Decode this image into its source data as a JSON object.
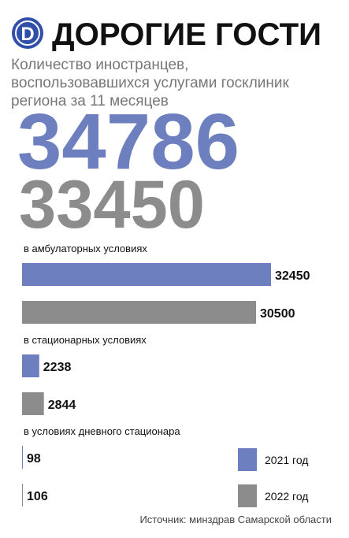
{
  "chart_data": {
    "type": "bar",
    "orientation": "horizontal",
    "logo": "D",
    "title": "ДОРОГИЕ ГОСТИ",
    "subtitle": [
      "Количество иностранцев,",
      "воспользовавшихся услугами госклиник",
      "региона за 11 месяцев"
    ],
    "categories": [
      "в амбулаторных условиях",
      "в стационарных условиях",
      "в условиях дневного стационара"
    ],
    "series": [
      {
        "name": "2021 год",
        "color": "#6d7fbe",
        "total": 34786,
        "values": [
          32450,
          2238,
          98
        ]
      },
      {
        "name": "2022 год",
        "color": "#8c8c8c",
        "total": 33450,
        "values": [
          30500,
          2844,
          106
        ]
      }
    ],
    "legend": "bottom-right",
    "source": "Источник: минздрав Самарской области"
  }
}
